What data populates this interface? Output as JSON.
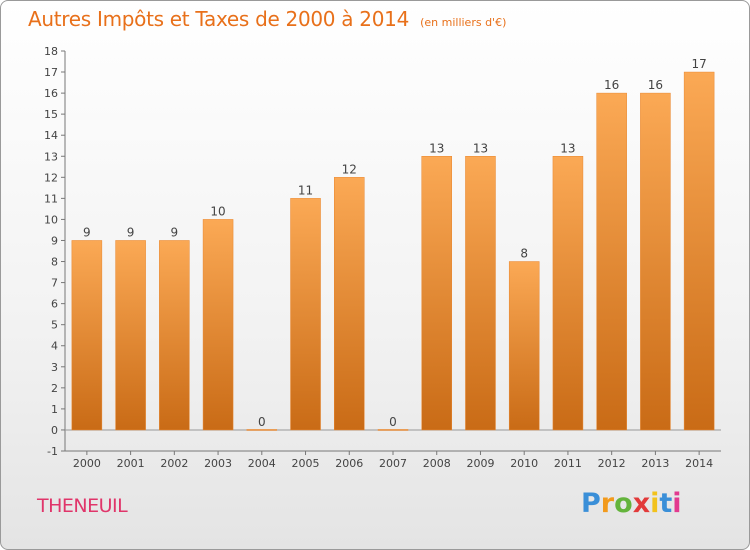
{
  "chart_data": {
    "type": "bar",
    "title": "Autres Impôts et Taxes de 2000 à 2014",
    "subtitle": "(en milliers d'€)",
    "categories": [
      "2000",
      "2001",
      "2002",
      "2003",
      "2004",
      "2005",
      "2006",
      "2007",
      "2008",
      "2009",
      "2010",
      "2011",
      "2012",
      "2013",
      "2014"
    ],
    "values": [
      9,
      9,
      9,
      10,
      0,
      11,
      12,
      0,
      13,
      13,
      8,
      13,
      16,
      16,
      17
    ],
    "ylim": [
      -1,
      18
    ],
    "yticks": [
      "-1",
      "0",
      "1",
      "2",
      "3",
      "4",
      "5",
      "6",
      "7",
      "8",
      "9",
      "10",
      "11",
      "12",
      "13",
      "14",
      "15",
      "16",
      "17",
      "18"
    ],
    "grid": false,
    "bar_color": "#e8862e",
    "bar_color_light": "#fba955",
    "bar_color_dark": "#c96b16"
  },
  "commune": "THENEUIL",
  "logo": {
    "letters": [
      "P",
      "r",
      "o",
      "x",
      "i",
      "t",
      "i"
    ],
    "colors": [
      "#3a8fd8",
      "#f29a1c",
      "#64b43c",
      "#e23a3a",
      "#f2c21c",
      "#3a8fd8",
      "#e23a8f"
    ]
  }
}
